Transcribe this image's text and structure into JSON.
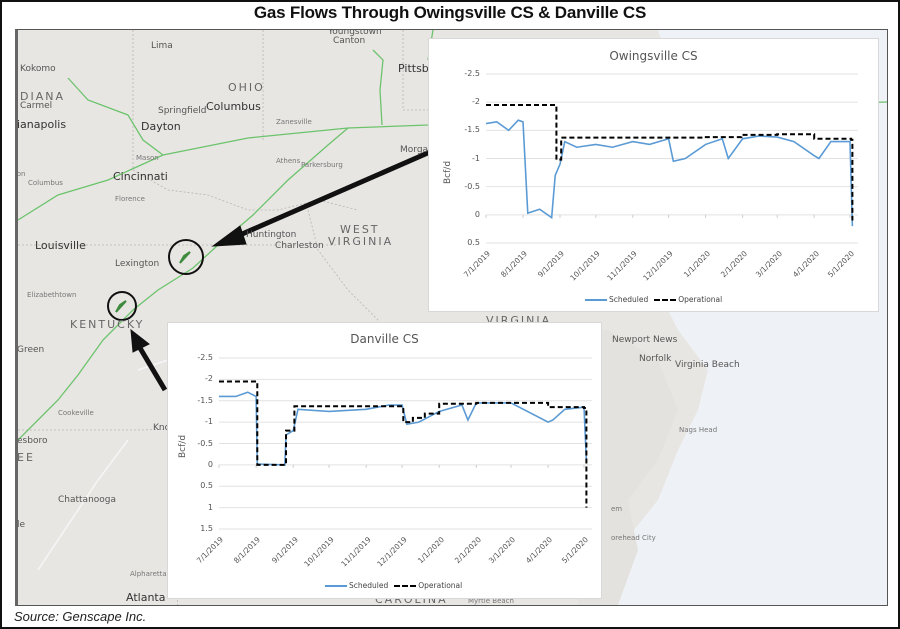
{
  "title": "Gas Flows Through Owingsville CS & Danville CS",
  "source": "Source: Genscape Inc.",
  "map": {
    "states": [
      "OHIO",
      "DIANA",
      "WEST",
      "VIRGINIA",
      "KENTUCKY",
      "VIRGINIA",
      "CAROLINA",
      "EE"
    ],
    "cities": [
      {
        "name": "Youngstown"
      },
      {
        "name": "Canton"
      },
      {
        "name": "Lima"
      },
      {
        "name": "Kokomo"
      },
      {
        "name": "Carmel"
      },
      {
        "name": "ianapolis"
      },
      {
        "name": "Springfield"
      },
      {
        "name": "Columbus"
      },
      {
        "name": "Dayton"
      },
      {
        "name": "Zanesville"
      },
      {
        "name": "Pittsburg"
      },
      {
        "name": "Morganto"
      },
      {
        "name": "Mason"
      },
      {
        "name": "Athens"
      },
      {
        "name": "Parkersburg"
      },
      {
        "name": "Cincinnati"
      },
      {
        "name": "Columbus"
      },
      {
        "name": "Florence"
      },
      {
        "name": "Louisville"
      },
      {
        "name": "Huntington"
      },
      {
        "name": "Charleston"
      },
      {
        "name": "Lexington"
      },
      {
        "name": "Elizabethtown"
      },
      {
        "name": "Green"
      },
      {
        "name": "Cookeville"
      },
      {
        "name": "esboro"
      },
      {
        "name": "Kno"
      },
      {
        "name": "Chattanooga"
      },
      {
        "name": "Alpharetta"
      },
      {
        "name": "Atlanta"
      },
      {
        "name": "Newport News"
      },
      {
        "name": "Norfolk"
      },
      {
        "name": "Virginia Beach"
      },
      {
        "name": "Nags Head"
      },
      {
        "name": "Myrtle Beach"
      },
      {
        "name": "orehead City"
      },
      {
        "name": "em"
      },
      {
        "name": "le"
      },
      {
        "name": "ton"
      }
    ],
    "pipeline_color": "#6cc36c",
    "markers": [
      {
        "name": "Owingsville CS"
      },
      {
        "name": "Danville CS"
      }
    ]
  },
  "chart_data": [
    {
      "type": "line",
      "title": "Owingsville CS",
      "xlabel": "",
      "ylabel": "Bcf/d",
      "ylim": [
        -2.5,
        0.5
      ],
      "y_inverted": true,
      "yticks": [
        "-2.5",
        "-2",
        "-1.5",
        "-1",
        "-0.5",
        "0",
        "0.5"
      ],
      "xticks": [
        "7/1/2019",
        "8/1/2019",
        "9/1/2019",
        "10/1/2019",
        "11/1/2019",
        "12/1/2019",
        "1/1/2020",
        "2/1/2020",
        "3/1/2020",
        "4/1/2020",
        "5/1/2020"
      ],
      "grid": true,
      "legend_position": "bottom",
      "legend": [
        "Scheduled",
        "Operational"
      ],
      "series": [
        {
          "name": "Scheduled",
          "color": "#5b9bd5",
          "style": "solid",
          "x": [
            "7/1/2019",
            "7/10/2019",
            "7/20/2019",
            "7/28/2019",
            "8/1/2019",
            "8/5/2019",
            "8/15/2019",
            "8/25/2019",
            "8/28/2019",
            "9/1/2019",
            "9/5/2019",
            "9/15/2019",
            "10/1/2019",
            "10/15/2019",
            "11/1/2019",
            "11/15/2019",
            "12/1/2019",
            "12/5/2019",
            "12/15/2019",
            "1/1/2020",
            "1/15/2020",
            "1/20/2020",
            "2/1/2020",
            "2/15/2020",
            "3/1/2020",
            "3/15/2020",
            "4/1/2020",
            "4/5/2020",
            "4/15/2020",
            "5/1/2020",
            "5/3/2020"
          ],
          "values": [
            -1.62,
            -1.65,
            -1.5,
            -1.68,
            -1.65,
            -0.03,
            -0.1,
            0.05,
            -0.7,
            -0.9,
            -1.3,
            -1.2,
            -1.25,
            -1.2,
            -1.3,
            -1.25,
            -1.35,
            -0.95,
            -1.0,
            -1.25,
            -1.35,
            -1.0,
            -1.35,
            -1.4,
            -1.38,
            -1.3,
            -1.05,
            -1.0,
            -1.3,
            -1.3,
            0.2
          ]
        },
        {
          "name": "Operational",
          "color": "#000000",
          "style": "dashed",
          "x": [
            "7/1/2019",
            "8/28/2019",
            "8/29/2019",
            "9/2/2019",
            "12/31/2019",
            "1/31/2020",
            "3/1/2020",
            "4/1/2020",
            "5/2/2020",
            "5/3/2020"
          ],
          "values": [
            -1.95,
            -1.95,
            -0.98,
            -1.37,
            -1.38,
            -1.42,
            -1.43,
            -1.35,
            -1.33,
            0.1
          ]
        }
      ]
    },
    {
      "type": "line",
      "title": "Danville CS",
      "xlabel": "",
      "ylabel": "Bcf/d",
      "ylim": [
        -2.5,
        1.5
      ],
      "y_inverted": true,
      "yticks": [
        "-2.5",
        "-2",
        "-1.5",
        "-1",
        "-0.5",
        "0",
        "0.5",
        "1",
        "1.5"
      ],
      "xticks": [
        "7/1/2019",
        "8/1/2019",
        "9/1/2019",
        "10/1/2019",
        "11/1/2019",
        "12/1/2019",
        "1/1/2020",
        "2/1/2020",
        "3/1/2020",
        "4/1/2020",
        "5/1/2020"
      ],
      "grid": true,
      "legend_position": "bottom",
      "legend": [
        "Scheduled",
        "Operational"
      ],
      "series": [
        {
          "name": "Scheduled",
          "color": "#5b9bd5",
          "style": "solid",
          "x": [
            "7/1/2019",
            "7/15/2019",
            "7/25/2019",
            "8/1/2019",
            "8/2/2019",
            "8/25/2019",
            "8/26/2019",
            "9/1/2019",
            "9/5/2019",
            "10/1/2019",
            "11/1/2019",
            "11/20/2019",
            "12/1/2019",
            "12/5/2019",
            "12/15/2019",
            "1/1/2020",
            "1/20/2020",
            "1/25/2020",
            "2/1/2020",
            "3/1/2020",
            "4/1/2020",
            "4/5/2020",
            "4/15/2020",
            "5/1/2020",
            "5/3/2020"
          ],
          "values": [
            -1.6,
            -1.6,
            -1.7,
            -1.6,
            -0.02,
            0.0,
            -0.7,
            -0.8,
            -1.3,
            -1.25,
            -1.3,
            -1.4,
            -1.4,
            -0.95,
            -1.0,
            -1.25,
            -1.4,
            -1.05,
            -1.45,
            -1.45,
            -1.0,
            -1.05,
            -1.3,
            -1.35,
            -0.1
          ]
        },
        {
          "name": "Operational",
          "color": "#000000",
          "style": "dashed",
          "x": [
            "7/1/2019",
            "8/1/2019",
            "8/2/2019",
            "8/25/2019",
            "8/26/2019",
            "9/1/2019",
            "9/2/2019",
            "12/1/2019",
            "12/2/2019",
            "12/10/2019",
            "12/20/2019",
            "1/1/2020",
            "1/25/2020",
            "2/1/2020",
            "4/1/2020",
            "5/1/2020",
            "5/3/2020"
          ],
          "values": [
            -1.95,
            -1.95,
            0.0,
            0.0,
            -0.8,
            -0.8,
            -1.37,
            -1.37,
            -1.0,
            -1.1,
            -1.2,
            -1.43,
            -1.43,
            -1.45,
            -1.35,
            -1.33,
            1.0
          ]
        }
      ]
    }
  ]
}
